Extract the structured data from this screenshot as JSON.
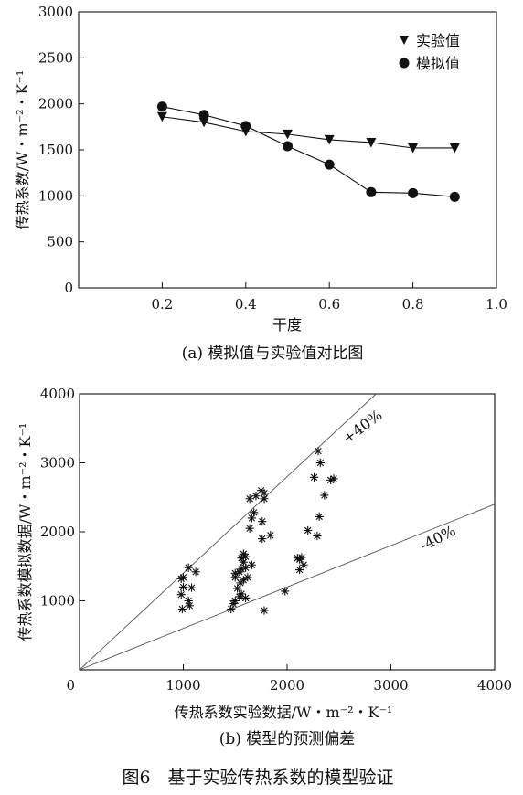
{
  "figure_caption": "图6　基于实验传热系数的模型验证",
  "chart_data": [
    {
      "type": "line",
      "caption": "(a) 模拟值与实验值对比图",
      "xlabel": "干度",
      "ylabel": "传热系数/W・m⁻²・K⁻¹",
      "xlim": [
        0.0,
        1.0
      ],
      "ylim": [
        0,
        3000
      ],
      "xticks": [
        "0.2",
        "0.4",
        "0.6",
        "0.8",
        "1.0"
      ],
      "yticks": [
        "0",
        "500",
        "1000",
        "1500",
        "2000",
        "2500",
        "3000"
      ],
      "legend_position": "top-right",
      "x": [
        0.2,
        0.3,
        0.4,
        0.5,
        0.6,
        0.7,
        0.8,
        0.9
      ],
      "series": [
        {
          "name": "实验值",
          "marker": "triangle-down",
          "values": [
            1860,
            1800,
            1700,
            1670,
            1610,
            1580,
            1520,
            1520
          ]
        },
        {
          "name": "模拟值",
          "marker": "circle",
          "values": [
            1970,
            1880,
            1760,
            1540,
            1340,
            1040,
            1030,
            990
          ]
        }
      ]
    },
    {
      "type": "scatter",
      "caption": "(b) 模型的预测偏差",
      "xlabel": "传热系数实验数据/W・m⁻²・K⁻¹",
      "ylabel": "传热系数模拟数据/W・m⁻²・K⁻¹",
      "xlim": [
        0,
        4000
      ],
      "ylim": [
        0,
        4000
      ],
      "xticks": [
        "0",
        "1000",
        "2000",
        "3000",
        "4000"
      ],
      "yticks": [
        "1000",
        "2000",
        "3000",
        "4000"
      ],
      "reference_lines": [
        {
          "label": "+40%",
          "slope": 1.4
        },
        {
          "label": "-40%",
          "slope": 0.6
        }
      ],
      "marker": "asterisk",
      "points": [
        [
          980,
          1320
        ],
        [
          1000,
          1340
        ],
        [
          1050,
          1480
        ],
        [
          1120,
          1420
        ],
        [
          1000,
          1200
        ],
        [
          1080,
          1190
        ],
        [
          980,
          1090
        ],
        [
          1050,
          1000
        ],
        [
          990,
          880
        ],
        [
          1060,
          930
        ],
        [
          1460,
          880
        ],
        [
          1480,
          960
        ],
        [
          1500,
          1000
        ],
        [
          1540,
          1060
        ],
        [
          1560,
          1100
        ],
        [
          1600,
          1040
        ],
        [
          1520,
          1180
        ],
        [
          1550,
          1260
        ],
        [
          1580,
          1300
        ],
        [
          1620,
          1340
        ],
        [
          1500,
          1400
        ],
        [
          1540,
          1420
        ],
        [
          1560,
          1460
        ],
        [
          1600,
          1480
        ],
        [
          1580,
          1560
        ],
        [
          1560,
          1620
        ],
        [
          1600,
          1640
        ],
        [
          1580,
          1680
        ],
        [
          1660,
          1520
        ],
        [
          1500,
          1340
        ],
        [
          1640,
          2050
        ],
        [
          1660,
          2200
        ],
        [
          1680,
          2280
        ],
        [
          1760,
          2150
        ],
        [
          1760,
          1900
        ],
        [
          1840,
          1950
        ],
        [
          1640,
          2480
        ],
        [
          1700,
          2520
        ],
        [
          1780,
          2560
        ],
        [
          1750,
          2600
        ],
        [
          1780,
          2480
        ],
        [
          1780,
          860
        ],
        [
          1980,
          1140
        ],
        [
          2100,
          1620
        ],
        [
          2120,
          1600
        ],
        [
          2140,
          1630
        ],
        [
          2120,
          1450
        ],
        [
          2160,
          1520
        ],
        [
          2200,
          2020
        ],
        [
          2290,
          1940
        ],
        [
          2310,
          2220
        ],
        [
          2260,
          2790
        ],
        [
          2320,
          3000
        ],
        [
          2300,
          3170
        ],
        [
          2360,
          2530
        ],
        [
          2420,
          2750
        ],
        [
          2450,
          2770
        ]
      ]
    }
  ]
}
